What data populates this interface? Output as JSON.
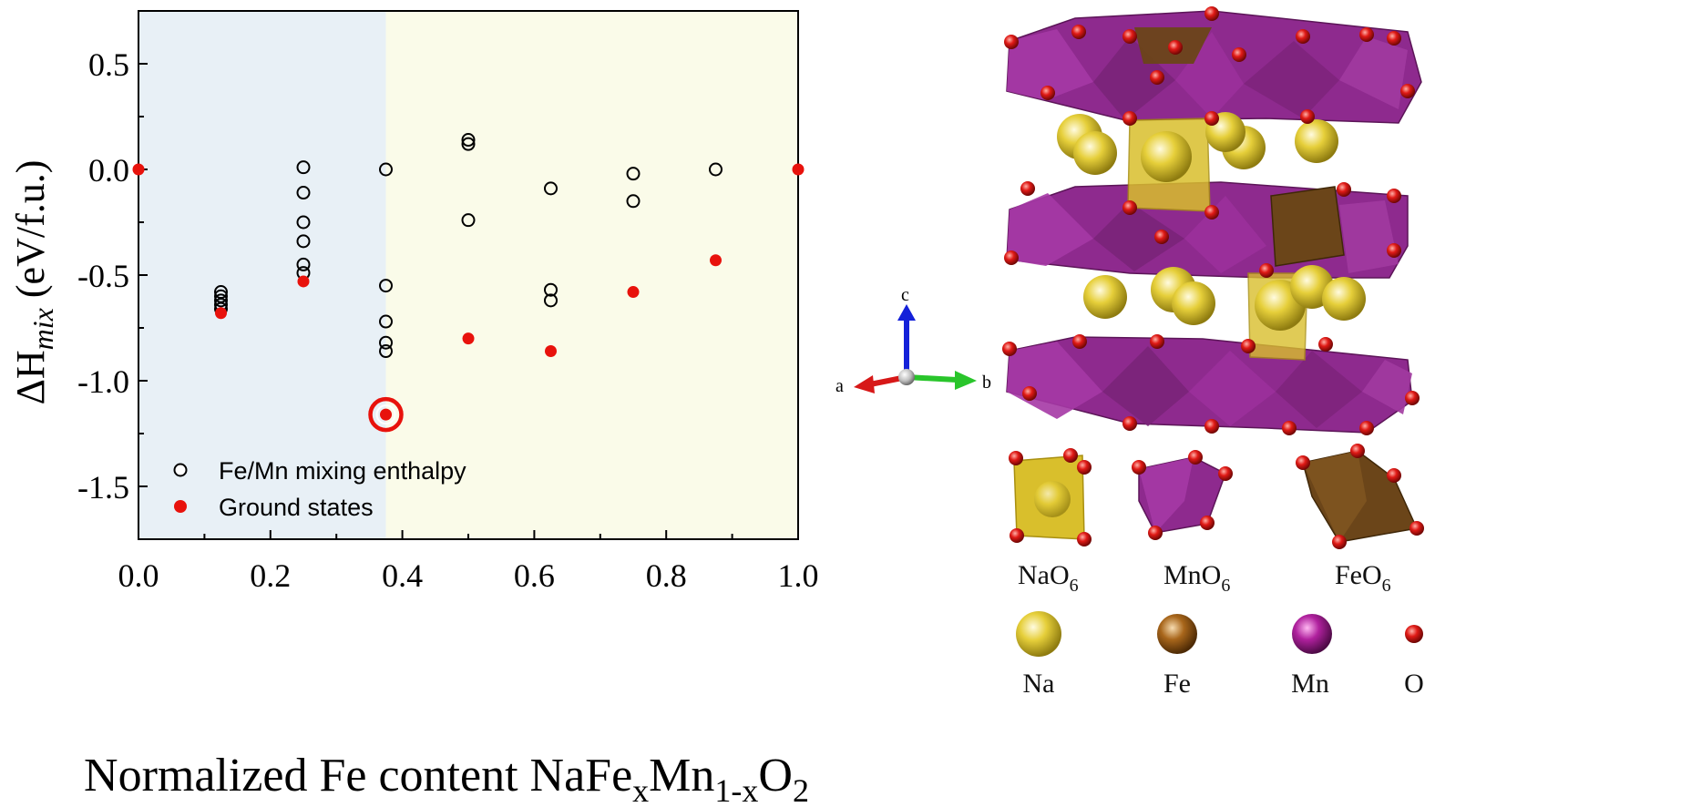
{
  "chart_data": {
    "type": "scatter",
    "xlabel": {
      "main": "Normalized Fe content NaFe",
      "sub1": "x",
      "mid": "Mn",
      "sub2": "1-x",
      "tail": "O",
      "sub3": "2"
    },
    "ylabel": {
      "prefix": "ΔH",
      "sub": "mix",
      "unit": " (eV/f.u.)"
    },
    "xlim": [
      0,
      1
    ],
    "ylim": [
      -1.75,
      0.75
    ],
    "xticks": [
      "0.0",
      "0.2",
      "0.4",
      "0.6",
      "0.8",
      "1.0"
    ],
    "yticks": [
      "0.5",
      "0.0",
      "-0.5",
      "-1.0",
      "-1.5"
    ],
    "regions": [
      {
        "x_from": 0,
        "x_to": 0.375,
        "color": "#e8f0f6"
      },
      {
        "x_from": 0.375,
        "x_to": 1,
        "color": "#fafbe9"
      }
    ],
    "legend": {
      "position": "bottom-left",
      "items": [
        "Fe/Mn mixing enthalpy",
        "Ground states"
      ]
    },
    "series": [
      {
        "name": "Fe/Mn mixing enthalpy",
        "marker": "open-circle",
        "color": "#000000",
        "points": [
          [
            0.125,
            -0.58
          ],
          [
            0.125,
            -0.6
          ],
          [
            0.125,
            -0.62
          ],
          [
            0.125,
            -0.64
          ],
          [
            0.125,
            -0.66
          ],
          [
            0.25,
            0.01
          ],
          [
            0.25,
            -0.11
          ],
          [
            0.25,
            -0.25
          ],
          [
            0.25,
            -0.34
          ],
          [
            0.25,
            -0.45
          ],
          [
            0.25,
            -0.49
          ],
          [
            0.375,
            0.0
          ],
          [
            0.375,
            -0.55
          ],
          [
            0.375,
            -0.72
          ],
          [
            0.375,
            -0.82
          ],
          [
            0.375,
            -0.86
          ],
          [
            0.5,
            0.14
          ],
          [
            0.5,
            0.12
          ],
          [
            0.5,
            -0.24
          ],
          [
            0.625,
            -0.09
          ],
          [
            0.625,
            -0.57
          ],
          [
            0.625,
            -0.62
          ],
          [
            0.75,
            -0.02
          ],
          [
            0.75,
            -0.15
          ],
          [
            0.875,
            0.0
          ]
        ]
      },
      {
        "name": "Ground states",
        "marker": "filled-circle",
        "color": "#e8120c",
        "points": [
          [
            0.0,
            0.0
          ],
          [
            0.125,
            -0.68
          ],
          [
            0.25,
            -0.53
          ],
          [
            0.375,
            -1.16
          ],
          [
            0.5,
            -0.8
          ],
          [
            0.625,
            -0.86
          ],
          [
            0.75,
            -0.58
          ],
          [
            0.875,
            -0.43
          ],
          [
            1.0,
            0.0
          ]
        ]
      }
    ],
    "highlight": {
      "x": 0.375,
      "y": -1.16,
      "color": "#e8120c"
    }
  },
  "structure": {
    "axes": [
      "a",
      "b",
      "c"
    ],
    "polyhedra": [
      {
        "formula_main": "NaO",
        "formula_sub": "6",
        "color": "#d9bf2c"
      },
      {
        "formula_main": "MnO",
        "formula_sub": "6",
        "color": "#8e2a8e"
      },
      {
        "formula_main": "FeO",
        "formula_sub": "6",
        "color": "#6b4519"
      }
    ],
    "atoms": [
      {
        "label": "Na",
        "color": "#e6cf3a"
      },
      {
        "label": "Fe",
        "color": "#9a5a14"
      },
      {
        "label": "Mn",
        "color": "#b0219e"
      },
      {
        "label": "O",
        "color": "#e01a16"
      }
    ]
  }
}
